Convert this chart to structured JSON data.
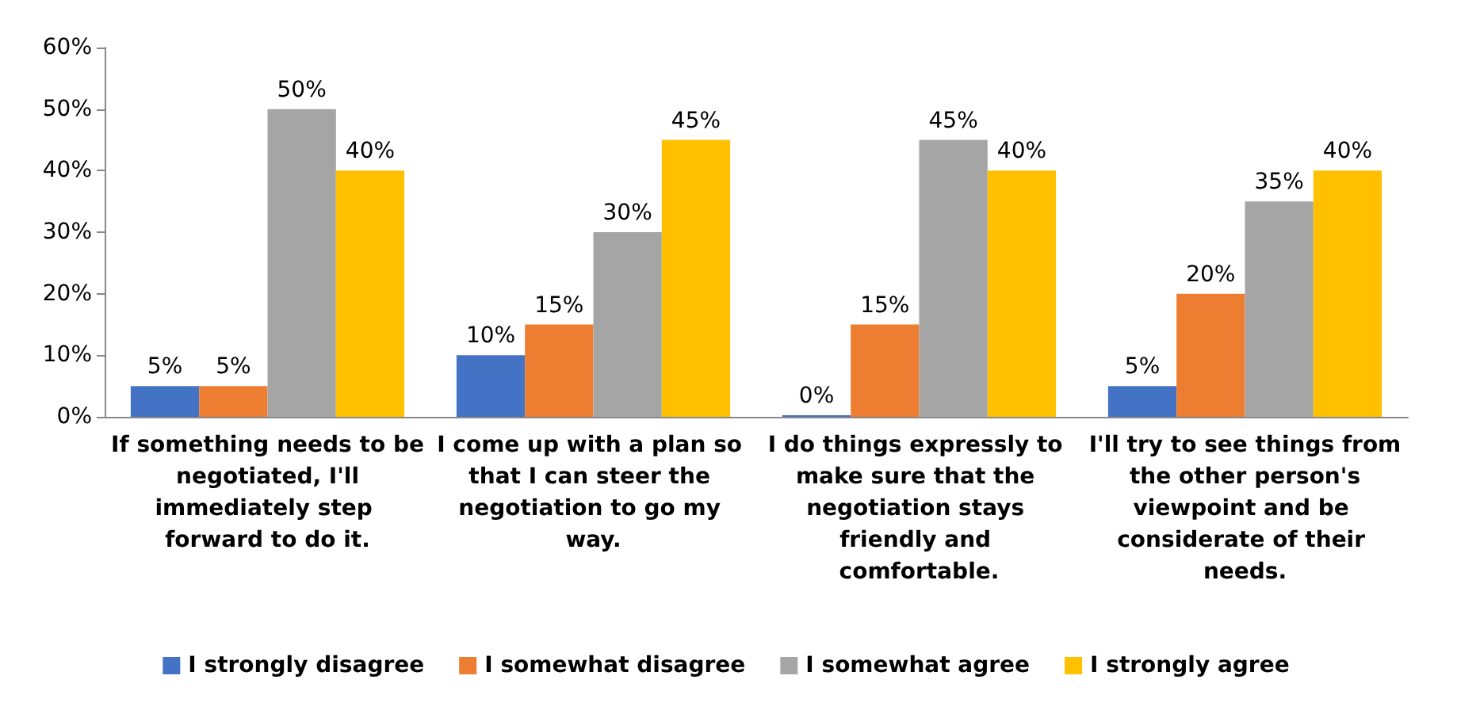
{
  "chart_data": {
    "type": "bar",
    "categories": [
      "If something needs to be negotiated, I'll immediately step forward to do it.",
      "I come up with a plan so that I can steer the negotiation to go my way.",
      "I do things expressly to make sure that the negotiation stays friendly and comfortable.",
      "I'll try to see things from the other person's viewpoint and be considerate of their needs."
    ],
    "series": [
      {
        "name": "I strongly disagree",
        "color": "#4472c4",
        "values": [
          5,
          10,
          0,
          5
        ],
        "value_labels": [
          "5%",
          "10%",
          "0%",
          "5%"
        ]
      },
      {
        "name": "I somewhat disagree",
        "color": "#ed7d31",
        "values": [
          5,
          15,
          15,
          20
        ],
        "value_labels": [
          "5%",
          "15%",
          "15%",
          "20%"
        ]
      },
      {
        "name": "I somewhat agree",
        "color": "#a5a5a5",
        "values": [
          50,
          30,
          45,
          35
        ],
        "value_labels": [
          "50%",
          "30%",
          "45%",
          "35%"
        ]
      },
      {
        "name": "I strongly agree",
        "color": "#ffc000",
        "values": [
          40,
          45,
          40,
          40
        ],
        "value_labels": [
          "40%",
          "45%",
          "40%",
          "40%"
        ]
      }
    ],
    "ylim": [
      0,
      60
    ],
    "yticks": [
      {
        "value": 0,
        "label": "0%"
      },
      {
        "value": 10,
        "label": "10%"
      },
      {
        "value": 20,
        "label": "20%"
      },
      {
        "value": 30,
        "label": "30%"
      },
      {
        "value": 40,
        "label": "40%"
      },
      {
        "value": 50,
        "label": "50%"
      },
      {
        "value": 60,
        "label": "60%"
      }
    ],
    "grid": false,
    "legend": "bottom"
  }
}
